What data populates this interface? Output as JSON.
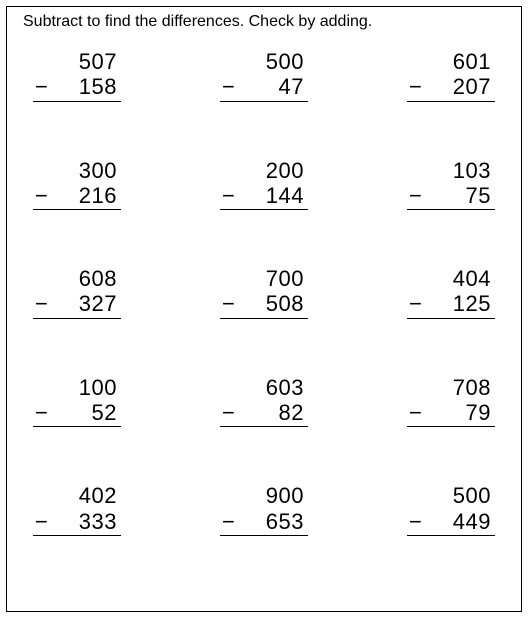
{
  "instructions": "Subtract to find the differences.  Check by adding.",
  "font_family": "Century Gothic, Futura, Avant Garde, sans-serif",
  "text_color": "#000000",
  "border_color": "#000000",
  "background_color": "#ffffff",
  "minus_symbol": "−",
  "layout": {
    "columns": 3,
    "rows": 5,
    "problem_fontsize": 22,
    "instruction_fontsize": 16
  },
  "problems": [
    {
      "minuend": "507",
      "subtrahend": "158"
    },
    {
      "minuend": "500",
      "subtrahend": "47"
    },
    {
      "minuend": "601",
      "subtrahend": "207"
    },
    {
      "minuend": "300",
      "subtrahend": "216"
    },
    {
      "minuend": "200",
      "subtrahend": "144"
    },
    {
      "minuend": "103",
      "subtrahend": "75"
    },
    {
      "minuend": "608",
      "subtrahend": "327"
    },
    {
      "minuend": "700",
      "subtrahend": "508"
    },
    {
      "minuend": "404",
      "subtrahend": "125"
    },
    {
      "minuend": "100",
      "subtrahend": "52"
    },
    {
      "minuend": "603",
      "subtrahend": "82"
    },
    {
      "minuend": "708",
      "subtrahend": "79"
    },
    {
      "minuend": "402",
      "subtrahend": "333"
    },
    {
      "minuend": "900",
      "subtrahend": "653"
    },
    {
      "minuend": "500",
      "subtrahend": "449"
    }
  ]
}
